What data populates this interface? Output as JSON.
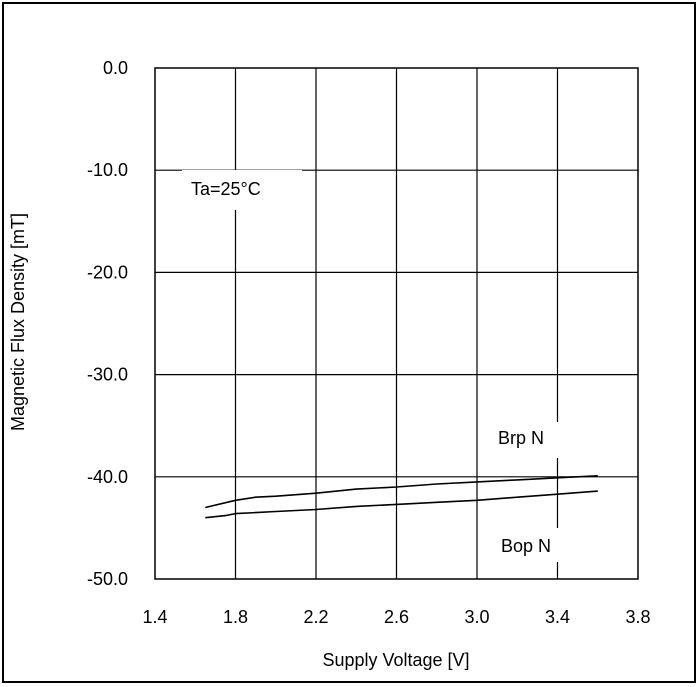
{
  "chart_data": {
    "type": "line",
    "title": "",
    "xlabel": "Supply Voltage [V]",
    "ylabel": "Magnetic Flux Density [mT]",
    "xlim": [
      1.4,
      3.8
    ],
    "ylim": [
      -50.0,
      0.0
    ],
    "x_ticks": [
      "1.4",
      "1.8",
      "2.2",
      "2.6",
      "3.0",
      "3.4",
      "3.8"
    ],
    "y_ticks": [
      "0.0",
      "-10.0",
      "-20.0",
      "-30.0",
      "-40.0",
      "-50.0"
    ],
    "grid": true,
    "annotations": {
      "condition": "Ta=25°C",
      "upper_curve": "Brp N",
      "lower_curve": "Bop N"
    },
    "series": [
      {
        "name": "Brp N",
        "x": [
          1.65,
          1.8,
          1.9,
          2.0,
          2.2,
          2.4,
          2.6,
          2.8,
          3.0,
          3.2,
          3.4,
          3.6
        ],
        "y": [
          -43.0,
          -42.3,
          -42.0,
          -41.9,
          -41.6,
          -41.2,
          -41.0,
          -40.7,
          -40.5,
          -40.3,
          -40.1,
          -39.9
        ]
      },
      {
        "name": "Bop N",
        "x": [
          1.65,
          1.75,
          1.8,
          1.9,
          2.0,
          2.2,
          2.4,
          2.6,
          2.8,
          3.0,
          3.2,
          3.4,
          3.6
        ],
        "y": [
          -44.0,
          -43.8,
          -43.6,
          -43.5,
          -43.4,
          -43.2,
          -42.9,
          -42.7,
          -42.5,
          -42.3,
          -42.0,
          -41.7,
          -41.4
        ]
      }
    ],
    "colors": {
      "line": "#000000",
      "grid": "#000000",
      "background": "#ffffff"
    }
  }
}
